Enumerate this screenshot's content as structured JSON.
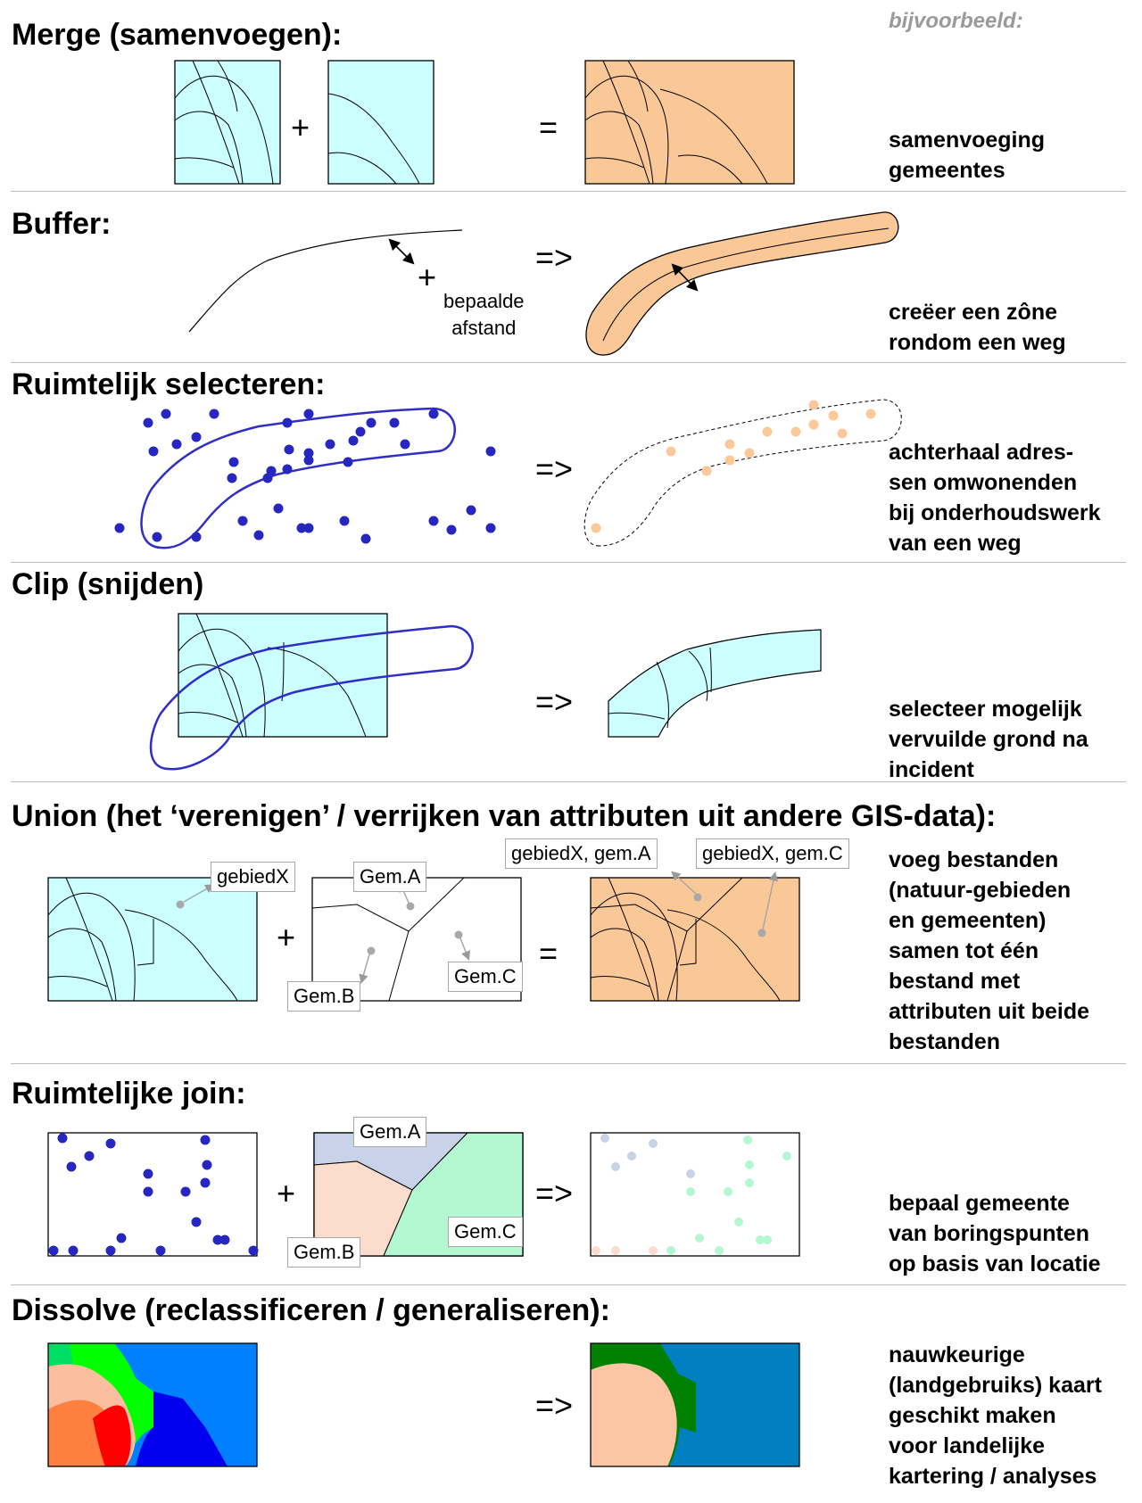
{
  "example_label": "bijvoorbeeld:",
  "sections": [
    {
      "title": "Merge (samenvoegen):",
      "operator": "=",
      "description": [
        "samenvoeging",
        "gemeentes"
      ]
    },
    {
      "title": "Buffer:",
      "operator": "=>",
      "description": [
        "creëer een zône",
        "rondom een weg"
      ]
    },
    {
      "title": "Ruimtelijk selecteren:",
      "operator": "=>",
      "description": [
        "achterhaal adres-",
        "sen omwonenden",
        "bij onderhoudswerk",
        "van een weg"
      ]
    },
    {
      "title": "Clip (snijden)",
      "operator": "=>",
      "description": [
        "selecteer mogelijk",
        "vervuilde grond na",
        "incident"
      ]
    },
    {
      "title": "Union (het ‘verenigen’ / verrijken van attributen uit andere GIS-data):",
      "operator": "=",
      "description": [
        "voeg bestanden",
        "(natuur-gebieden",
        "en gemeenten)",
        "samen tot één",
        "bestand met",
        "attributen uit beide",
        "bestanden"
      ]
    },
    {
      "title": "Ruimtelijke join:",
      "operator": "=>",
      "description": [
        "bepaal gemeente",
        "van boringspunten",
        "op basis van locatie"
      ]
    },
    {
      "title": "Dissolve (reclassificeren / generaliseren):",
      "operator": "=>",
      "description": [
        "nauwkeurige",
        "(landgebruiks) kaart",
        "geschikt maken",
        "voor landelijke",
        "kartering / analyses"
      ]
    }
  ],
  "plus": "+",
  "buffer_note": [
    "bepaalde",
    "afstand"
  ],
  "union_labels": {
    "gebiedX": "gebiedX",
    "gemA": "Gem.A",
    "gemB": "Gem.B",
    "gemC": "Gem.C",
    "result_a": "gebiedX, gem.A",
    "result_c": "gebiedX, gem.C"
  },
  "join_labels": {
    "gemA": "Gem.A",
    "gemB": "Gem.B",
    "gemC": "Gem.C"
  },
  "colors": {
    "cyan": "#ccffff",
    "orange": "#fac896",
    "blue_point": "#2626c0",
    "orange_point": "#fbc89a",
    "line_blue": "#2f2fc8",
    "gem_a": "#c8d2e8",
    "gem_b": "#fcdccc",
    "gem_c": "#b4f8d2",
    "dissolve_blue": "#0080c0"
  }
}
